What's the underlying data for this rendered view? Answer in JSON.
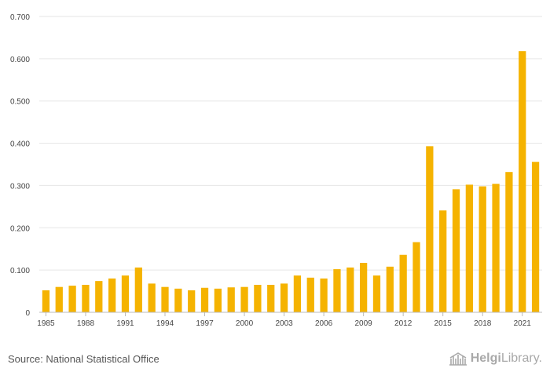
{
  "source": "Source: National Statistical Office",
  "brand": {
    "name_bold": "Helgi",
    "name_light": "Library.",
    "icon": "library-building-icon"
  },
  "colors": {
    "bar": "#F5B300",
    "grid": "#E6E6E6",
    "axis": "#BBBBBB"
  },
  "chart_data": {
    "type": "bar",
    "title": "",
    "xlabel": "",
    "ylabel": "",
    "ylim": [
      0,
      0.7
    ],
    "y_ticks": [
      "0",
      "0.100",
      "0.200",
      "0.300",
      "0.400",
      "0.500",
      "0.600",
      "0.700"
    ],
    "x_tick_labels": [
      "1985",
      "1988",
      "1991",
      "1994",
      "1997",
      "2000",
      "2003",
      "2006",
      "2009",
      "2012",
      "2015",
      "2018",
      "2021"
    ],
    "grid": true,
    "categories": [
      "1985",
      "1986",
      "1987",
      "1988",
      "1989",
      "1990",
      "1991",
      "1992",
      "1993",
      "1994",
      "1995",
      "1996",
      "1997",
      "1998",
      "1999",
      "2000",
      "2001",
      "2002",
      "2003",
      "2004",
      "2005",
      "2006",
      "2007",
      "2008",
      "2009",
      "2010",
      "2011",
      "2012",
      "2013",
      "2014",
      "2015",
      "2016",
      "2017",
      "2018",
      "2019",
      "2020",
      "2021",
      "2022"
    ],
    "values": [
      0.052,
      0.06,
      0.063,
      0.065,
      0.074,
      0.08,
      0.087,
      0.106,
      0.068,
      0.06,
      0.056,
      0.052,
      0.058,
      0.056,
      0.059,
      0.06,
      0.065,
      0.065,
      0.068,
      0.087,
      0.082,
      0.08,
      0.102,
      0.106,
      0.117,
      0.087,
      0.108,
      0.136,
      0.166,
      0.393,
      0.241,
      0.291,
      0.302,
      0.298,
      0.304,
      0.332,
      0.618,
      0.356
    ]
  }
}
